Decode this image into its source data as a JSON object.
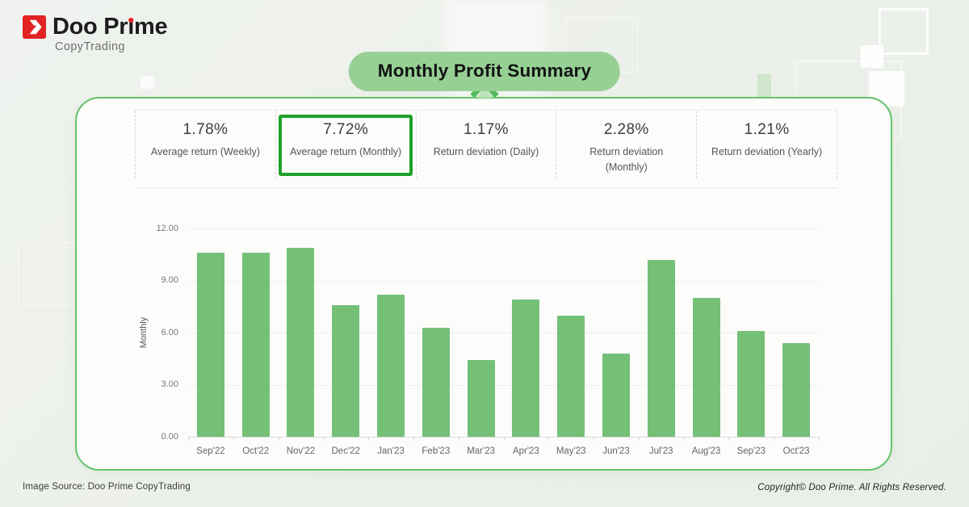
{
  "brand": {
    "name_parts": [
      "Doo Pr",
      "ı",
      "me"
    ],
    "subtitle": "CopyTrading"
  },
  "title": "Monthly Profit Summary",
  "stats": [
    {
      "value": "1.78%",
      "label_lines": [
        "Average return (Weekly)"
      ],
      "highlighted": false
    },
    {
      "value": "7.72%",
      "label_lines": [
        "Average return (Monthly)"
      ],
      "highlighted": true
    },
    {
      "value": "1.17%",
      "label_lines": [
        "Return deviation (Daily)"
      ],
      "highlighted": false
    },
    {
      "value": "2.28%",
      "label_lines": [
        "Return deviation",
        "(Monthly)"
      ],
      "highlighted": false
    },
    {
      "value": "1.21%",
      "label_lines": [
        "Return deviation (Yearly)"
      ],
      "highlighted": false
    }
  ],
  "chart_data": {
    "type": "bar",
    "categories": [
      "Sep'22",
      "Oct'22",
      "Nov'22",
      "Dec'22",
      "Jan'23",
      "Feb'23",
      "Mar'23",
      "Apr'23",
      "May'23",
      "Jun'23",
      "Jul'23",
      "Aug'23",
      "Sep'23",
      "Oct'23"
    ],
    "values": [
      10.6,
      10.6,
      10.9,
      7.6,
      8.2,
      6.3,
      4.4,
      7.9,
      7.0,
      4.8,
      10.2,
      8.0,
      6.1,
      5.4
    ],
    "title": "",
    "xlabel": "",
    "ylabel": "Monthly",
    "ylim": [
      0,
      12
    ],
    "y_ticks": [
      "12.00",
      "9.00",
      "6.00",
      "3.00",
      "0.00"
    ],
    "grid": true,
    "legend": "none",
    "bar_color": "#74c077"
  },
  "footer": {
    "left": "Image Source: Doo Prime CopyTrading",
    "right": "Copyright© Doo Prime. All Rights Reserved."
  },
  "colors": {
    "pill-green": "#97d095",
    "bar-green": "#74c077",
    "card-border": "#65c26b",
    "highlight-green": "#1fa12c",
    "brand-red": "#e32224"
  }
}
